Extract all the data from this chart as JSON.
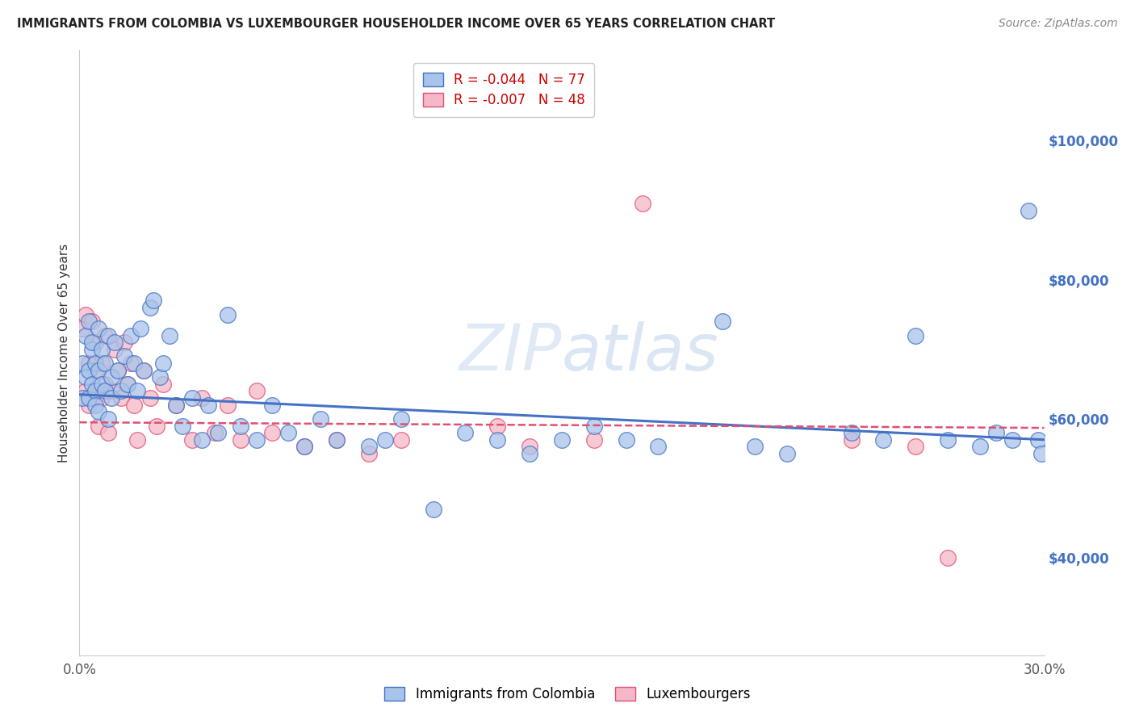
{
  "title": "IMMIGRANTS FROM COLOMBIA VS LUXEMBOURGER HOUSEHOLDER INCOME OVER 65 YEARS CORRELATION CHART",
  "source": "Source: ZipAtlas.com",
  "ylabel": "Householder Income Over 65 years",
  "xlim": [
    0.0,
    0.3
  ],
  "ylim": [
    26000,
    113000
  ],
  "xticks": [
    0.0,
    0.05,
    0.1,
    0.15,
    0.2,
    0.25,
    0.3
  ],
  "xticklabels": [
    "0.0%",
    "",
    "",
    "",
    "",
    "",
    "30.0%"
  ],
  "yticks_right": [
    40000,
    60000,
    80000,
    100000
  ],
  "ytick_labels_right": [
    "$40,000",
    "$60,000",
    "$80,000",
    "$100,000"
  ],
  "series1_label": "Immigrants from Colombia",
  "series2_label": "Luxembourgers",
  "series1_R": "-0.044",
  "series1_N": "77",
  "series2_R": "-0.007",
  "series2_N": "48",
  "series1_color": "#a8c4ea",
  "series2_color": "#f5b8c8",
  "line1_color": "#4472c4",
  "line2_color": "#e05070",
  "watermark": "ZIPatlas",
  "series1_x": [
    0.001,
    0.001,
    0.002,
    0.002,
    0.003,
    0.003,
    0.003,
    0.004,
    0.004,
    0.004,
    0.005,
    0.005,
    0.005,
    0.006,
    0.006,
    0.006,
    0.007,
    0.007,
    0.008,
    0.008,
    0.009,
    0.009,
    0.01,
    0.01,
    0.011,
    0.012,
    0.013,
    0.014,
    0.015,
    0.016,
    0.017,
    0.018,
    0.019,
    0.02,
    0.022,
    0.023,
    0.025,
    0.026,
    0.028,
    0.03,
    0.032,
    0.035,
    0.038,
    0.04,
    0.043,
    0.046,
    0.05,
    0.055,
    0.06,
    0.065,
    0.07,
    0.075,
    0.08,
    0.09,
    0.095,
    0.1,
    0.11,
    0.12,
    0.13,
    0.14,
    0.15,
    0.16,
    0.17,
    0.18,
    0.2,
    0.21,
    0.22,
    0.24,
    0.25,
    0.26,
    0.27,
    0.28,
    0.285,
    0.29,
    0.295,
    0.298,
    0.299
  ],
  "series1_y": [
    68000,
    63000,
    72000,
    66000,
    67000,
    74000,
    63000,
    70000,
    65000,
    71000,
    64000,
    68000,
    62000,
    73000,
    67000,
    61000,
    65000,
    70000,
    68000,
    64000,
    72000,
    60000,
    66000,
    63000,
    71000,
    67000,
    64000,
    69000,
    65000,
    72000,
    68000,
    64000,
    73000,
    67000,
    76000,
    77000,
    66000,
    68000,
    72000,
    62000,
    59000,
    63000,
    57000,
    62000,
    58000,
    75000,
    59000,
    57000,
    62000,
    58000,
    56000,
    60000,
    57000,
    56000,
    57000,
    60000,
    47000,
    58000,
    57000,
    55000,
    57000,
    59000,
    57000,
    56000,
    74000,
    56000,
    55000,
    58000,
    57000,
    72000,
    57000,
    56000,
    58000,
    57000,
    90000,
    57000,
    55000
  ],
  "series2_x": [
    0.001,
    0.002,
    0.002,
    0.003,
    0.003,
    0.004,
    0.004,
    0.005,
    0.005,
    0.006,
    0.006,
    0.007,
    0.007,
    0.008,
    0.008,
    0.009,
    0.01,
    0.011,
    0.012,
    0.013,
    0.014,
    0.015,
    0.016,
    0.017,
    0.018,
    0.02,
    0.022,
    0.024,
    0.026,
    0.03,
    0.035,
    0.038,
    0.042,
    0.046,
    0.05,
    0.055,
    0.06,
    0.07,
    0.08,
    0.09,
    0.1,
    0.13,
    0.14,
    0.16,
    0.175,
    0.24,
    0.26,
    0.27
  ],
  "series2_y": [
    73000,
    75000,
    64000,
    68000,
    62000,
    74000,
    63000,
    67000,
    71000,
    64000,
    59000,
    68000,
    63000,
    65000,
    72000,
    58000,
    64000,
    70000,
    67000,
    63000,
    71000,
    65000,
    68000,
    62000,
    57000,
    67000,
    63000,
    59000,
    65000,
    62000,
    57000,
    63000,
    58000,
    62000,
    57000,
    64000,
    58000,
    56000,
    57000,
    55000,
    57000,
    59000,
    56000,
    57000,
    91000,
    57000,
    56000,
    40000
  ]
}
